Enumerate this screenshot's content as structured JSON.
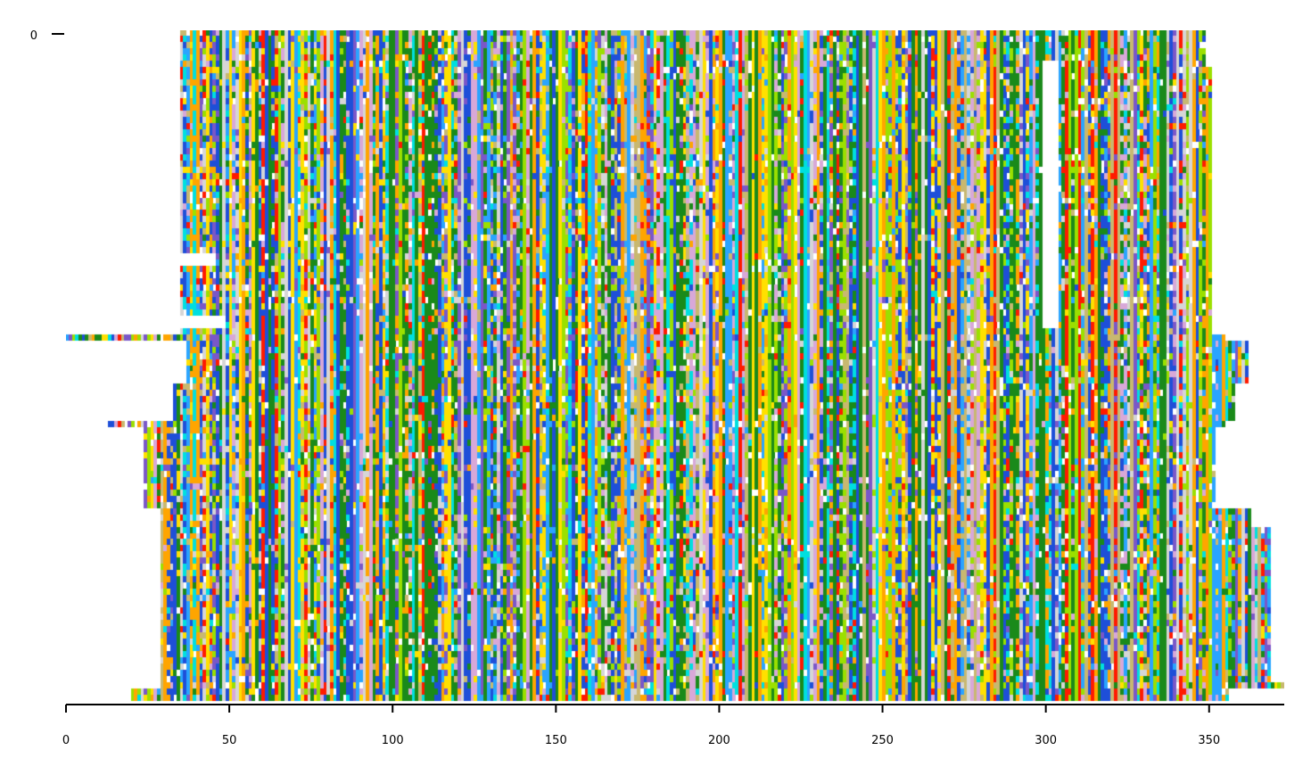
{
  "chart_data": {
    "type": "heatmap",
    "title": "",
    "xlabel": "",
    "ylabel": "",
    "xlim": [
      0,
      373
    ],
    "x_ticks": [
      "0",
      "50",
      "100",
      "150",
      "200",
      "250",
      "300",
      "350"
    ],
    "x_tick_values": [
      0,
      50,
      100,
      150,
      200,
      250,
      300,
      350
    ],
    "y_ticks": [
      "0"
    ],
    "y_tick_values": [
      0
    ],
    "n_sequences": 108,
    "alignment_columns": 373,
    "grid": false,
    "legend": "none",
    "palette": {
      "green": "#1a8a1a",
      "blue": "#1e4fd8",
      "orange": "#ffa500",
      "yellow": "#ffe000",
      "red": "#ff1a00",
      "cyan": "#00dfdf",
      "lightblue": "#2aa4ff",
      "purple": "#7a57c8",
      "pink": "#d8a8d8",
      "lightgray": "#d6d6d6",
      "tan": "#c8b870",
      "lime": "#9be000"
    },
    "sequence_groups": [
      {
        "rows": [
          0,
          5
        ],
        "start": 35,
        "end": 349
      },
      {
        "rows": [
          6,
          48
        ],
        "start": 35,
        "end": 351
      },
      {
        "rows": [
          49,
          49
        ],
        "start": 0,
        "end": 355
      },
      {
        "rows": [
          50,
          56
        ],
        "start": 37,
        "end": 362
      },
      {
        "rows": [
          57,
          62
        ],
        "start": 33,
        "end": 358
      },
      {
        "rows": [
          63,
          63
        ],
        "start": 13,
        "end": 355
      },
      {
        "rows": [
          64,
          76
        ],
        "start": 24,
        "end": 352
      },
      {
        "rows": [
          77,
          79
        ],
        "start": 29,
        "end": 363
      },
      {
        "rows": [
          80,
          104
        ],
        "start": 29,
        "end": 369
      },
      {
        "rows": [
          105,
          105
        ],
        "start": 29,
        "end": 373
      },
      {
        "rows": [
          106,
          107
        ],
        "start": 20,
        "end": 356
      }
    ],
    "gaps": [
      {
        "rows": [
          5,
          47
        ],
        "start": 299,
        "end": 304
      },
      {
        "rows": [
          36,
          37
        ],
        "start": 35,
        "end": 46
      },
      {
        "rows": [
          46,
          47
        ],
        "start": 35,
        "end": 49
      }
    ]
  }
}
